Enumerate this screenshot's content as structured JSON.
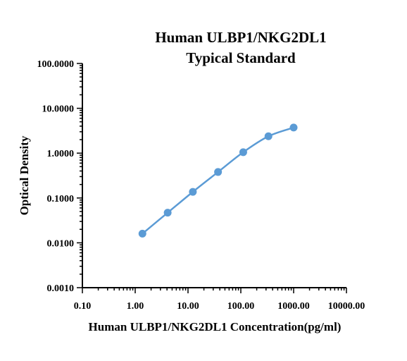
{
  "chart_data": {
    "type": "scatter",
    "title": [
      "Human ULBP1/NKG2DL1",
      "Typical Standard"
    ],
    "xlabel": "Human ULBP1/NKG2DL1 Concentration(pg/ml)",
    "ylabel": "Optical Density",
    "xscale": "log",
    "yscale": "log",
    "xlim": [
      0.1,
      10000
    ],
    "ylim": [
      0.001,
      100
    ],
    "x_tick_labels": [
      "0.10",
      "1.00",
      "10.00",
      "100.00",
      "1000.00",
      "10000.00"
    ],
    "y_tick_labels": [
      "0.0010",
      "0.0100",
      "0.1000",
      "1.0000",
      "10.0000",
      "100.0000"
    ],
    "grid": false,
    "legend": "none",
    "color": "#5b9bd5",
    "series": [
      {
        "x": [
          1.37,
          4.12,
          12.35,
          37.04,
          111.1,
          333.3,
          1000
        ],
        "y": [
          0.016,
          0.047,
          0.137,
          0.38,
          1.05,
          2.38,
          3.72
        ]
      }
    ]
  }
}
